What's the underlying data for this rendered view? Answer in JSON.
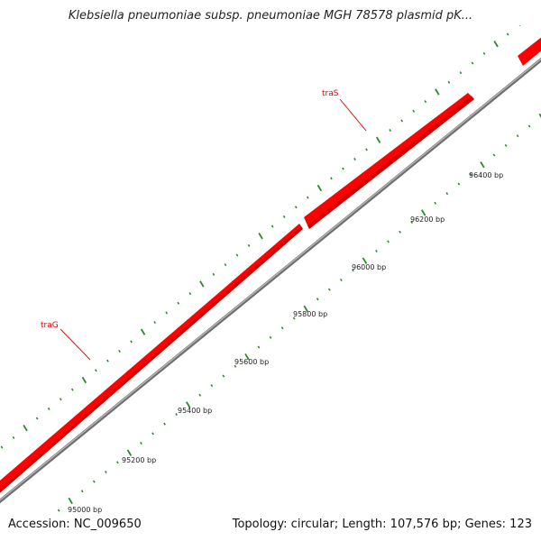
{
  "title": "Klebsiella pneumoniae subsp. pneumoniae MGH 78578 plasmid pK...",
  "footer": {
    "accession": "Accession: NC_009650",
    "summary": "Topology: circular; Length: 107,576 bp; Genes: 123"
  },
  "colors": {
    "gene": "#ff0000",
    "gene_dark": "#b00000",
    "backbone": "#888888",
    "ticks": "#2a8a2a",
    "label": "#e00000"
  },
  "ruler": [
    {
      "label": "95000 bp"
    },
    {
      "label": "95200 bp"
    },
    {
      "label": "95400 bp"
    },
    {
      "label": "95600 bp"
    },
    {
      "label": "95800 bp"
    },
    {
      "label": "96000 bp"
    },
    {
      "label": "96200 bp"
    },
    {
      "label": "96400 bp"
    }
  ],
  "genes": [
    {
      "name": "traG",
      "strand": "+"
    },
    {
      "name": "traS",
      "strand": "+"
    }
  ]
}
